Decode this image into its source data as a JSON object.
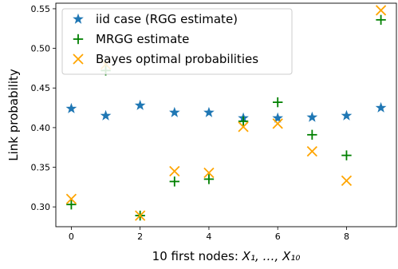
{
  "chart_data": {
    "type": "scatter",
    "xlabel_prefix": "10 first nodes: ",
    "xlabel_math": "X₁, …, X₁₀",
    "ylabel": "Link probability",
    "xlim": [
      -0.45,
      9.45
    ],
    "ylim": [
      0.275,
      0.557
    ],
    "xticks": [
      0,
      2,
      4,
      6,
      8
    ],
    "yticks": [
      0.3,
      0.35,
      0.4,
      0.45,
      0.5,
      0.55
    ],
    "ytick_labels": [
      "0.30",
      "0.35",
      "0.40",
      "0.45",
      "0.50",
      "0.55"
    ],
    "grid": false,
    "legend_position": "top-left",
    "x": [
      0,
      1,
      2,
      3,
      4,
      5,
      6,
      7,
      8,
      9
    ],
    "series": [
      {
        "name": "iid case (RGG estimate)",
        "marker": "star",
        "color": "#1f77b4",
        "values": [
          0.424,
          0.415,
          0.428,
          0.419,
          0.419,
          0.412,
          0.412,
          0.413,
          0.415,
          0.425
        ]
      },
      {
        "name": "MRGG estimate",
        "marker": "plus",
        "color": "#008000",
        "values": [
          0.303,
          0.472,
          0.289,
          0.332,
          0.335,
          0.408,
          0.432,
          0.391,
          0.365,
          0.536
        ]
      },
      {
        "name": "Bayes optimal probabilities",
        "marker": "x",
        "color": "#ffa500",
        "values": [
          0.31,
          0.48,
          0.289,
          0.345,
          0.343,
          0.401,
          0.405,
          0.37,
          0.333,
          0.548
        ]
      }
    ]
  }
}
